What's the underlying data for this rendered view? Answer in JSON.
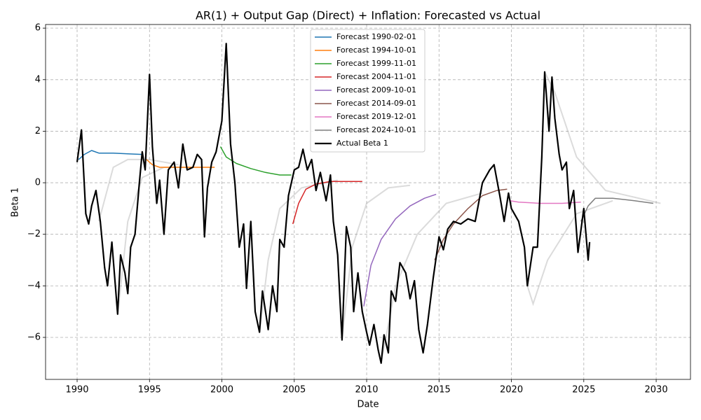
{
  "chart_data": {
    "type": "line",
    "title": "AR(1) + Output Gap (Direct) + Inflation: Forecasted vs Actual",
    "x_label": "Date",
    "y_label": "Beta 1",
    "xlim": [
      1987.82,
      2032.37
    ],
    "ylim": [
      -7.63,
      6.14
    ],
    "xticks": [
      1990,
      1995,
      2000,
      2005,
      2010,
      2015,
      2020,
      2025,
      2030
    ],
    "yticks": [
      {
        "value": -6,
        "label": "−6"
      },
      {
        "value": -4,
        "label": "−4"
      },
      {
        "value": -2,
        "label": "−2"
      },
      0,
      2,
      4,
      6
    ],
    "grid": true,
    "legend": "upper center",
    "background_lines": {
      "color": "#999999",
      "lines": [
        {
          "x": [
            1991.5,
            1992.5,
            1993.5,
            1995.0,
            1997.0
          ],
          "values": [
            -1.5,
            0.6,
            0.9,
            0.9,
            0.7
          ]
        },
        {
          "x": [
            1992.8,
            1993.5,
            1994.5,
            1996.0,
            1998.0
          ],
          "values": [
            -5.1,
            -1.5,
            0.2,
            0.6,
            0.6
          ]
        },
        {
          "x": [
            2002.6,
            2003.2,
            2004.0,
            2005.5,
            2008.0
          ],
          "values": [
            -5.8,
            -3.0,
            -1.0,
            -0.2,
            0.1
          ]
        },
        {
          "x": [
            2008.3,
            2009.0,
            2010.0,
            2011.5,
            2013.0
          ],
          "values": [
            -6.1,
            -2.5,
            -0.8,
            -0.2,
            -0.1
          ]
        },
        {
          "x": [
            2011.0,
            2012.0,
            2013.5,
            2015.5,
            2018.0
          ],
          "values": [
            -7.0,
            -4.0,
            -2.0,
            -0.8,
            -0.4
          ]
        },
        {
          "x": [
            2021.1,
            2021.5,
            2022.5,
            2024.5,
            2027.0
          ],
          "values": [
            -4.0,
            -4.7,
            -3.0,
            -1.2,
            -0.7
          ]
        },
        {
          "x": [
            2022.3,
            2023.0,
            2024.5,
            2026.5,
            2030.3
          ],
          "values": [
            4.3,
            3.5,
            1.0,
            -0.3,
            -0.8
          ]
        }
      ]
    },
    "series": [
      {
        "name": "Forecast 1990-02-01",
        "color": "#1f77b4",
        "width": 1.5,
        "x": [
          1990.1,
          1990.5,
          1991.0,
          1991.5,
          1992.5,
          1993.5,
          1994.5
        ],
        "values": [
          0.9,
          1.1,
          1.25,
          1.15,
          1.15,
          1.12,
          1.1
        ]
      },
      {
        "name": "Forecast 1994-10-01",
        "color": "#ff7f0e",
        "width": 1.5,
        "x": [
          1994.8,
          1995.2,
          1995.7,
          1996.5,
          1997.5,
          1999.5
        ],
        "values": [
          0.9,
          0.7,
          0.6,
          0.6,
          0.6,
          0.6
        ]
      },
      {
        "name": "Forecast 1999-11-01",
        "color": "#2ca02c",
        "width": 1.5,
        "x": [
          1999.9,
          2000.3,
          2001.0,
          2002.0,
          2003.0,
          2004.0,
          2004.8
        ],
        "values": [
          1.4,
          1.0,
          0.75,
          0.55,
          0.4,
          0.3,
          0.3
        ]
      },
      {
        "name": "Forecast 2004-11-01",
        "color": "#d62728",
        "width": 1.5,
        "x": [
          2004.9,
          2005.3,
          2005.8,
          2006.5,
          2007.5,
          2009.7
        ],
        "values": [
          -1.6,
          -0.8,
          -0.25,
          -0.05,
          0.05,
          0.05
        ]
      },
      {
        "name": "Forecast 2009-10-01",
        "color": "#9467bd",
        "width": 1.5,
        "x": [
          2009.8,
          2010.3,
          2011.0,
          2012.0,
          2013.0,
          2014.0,
          2014.8
        ],
        "values": [
          -4.8,
          -3.2,
          -2.2,
          -1.4,
          -0.9,
          -0.6,
          -0.45
        ]
      },
      {
        "name": "Forecast 2014-09-01",
        "color": "#8c564b",
        "width": 1.5,
        "x": [
          2014.7,
          2015.3,
          2016.0,
          2017.0,
          2018.0,
          2019.0,
          2019.7
        ],
        "values": [
          -3.0,
          -2.2,
          -1.6,
          -1.0,
          -0.5,
          -0.3,
          -0.25
        ]
      },
      {
        "name": "Forecast 2019-12-01",
        "color": "#e377c2",
        "width": 1.5,
        "x": [
          2019.9,
          2020.5,
          2022.0,
          2023.5,
          2024.8
        ],
        "values": [
          -0.7,
          -0.75,
          -0.8,
          -0.8,
          -0.75
        ]
      },
      {
        "name": "Forecast 2024-10-01",
        "color": "#7f7f7f",
        "width": 1.5,
        "x": [
          2024.8,
          2025.3,
          2025.8,
          2027.0,
          2028.5,
          2029.8
        ],
        "values": [
          -1.5,
          -0.9,
          -0.6,
          -0.6,
          -0.7,
          -0.8
        ]
      },
      {
        "name": "Actual Beta 1",
        "color": "#000000",
        "width": 2.2,
        "x": [
          1990.0,
          1990.3,
          1990.6,
          1990.8,
          1991.0,
          1991.3,
          1991.6,
          1991.9,
          1992.1,
          1992.4,
          1992.8,
          1993.0,
          1993.3,
          1993.5,
          1993.7,
          1994.0,
          1994.3,
          1994.5,
          1994.7,
          1995.0,
          1995.2,
          1995.5,
          1995.7,
          1996.0,
          1996.3,
          1996.7,
          1997.0,
          1997.3,
          1997.6,
          1998.0,
          1998.3,
          1998.6,
          1998.8,
          1999.0,
          1999.3,
          1999.6,
          2000.0,
          2000.3,
          2000.6,
          2000.9,
          2001.2,
          2001.5,
          2001.7,
          2002.0,
          2002.3,
          2002.6,
          2002.8,
          2003.2,
          2003.5,
          2003.8,
          2004.0,
          2004.3,
          2004.6,
          2005.0,
          2005.3,
          2005.6,
          2005.9,
          2006.2,
          2006.5,
          2006.8,
          2007.2,
          2007.5,
          2007.7,
          2008.0,
          2008.3,
          2008.6,
          2008.9,
          2009.1,
          2009.4,
          2009.7,
          2010.0,
          2010.2,
          2010.5,
          2010.8,
          2011.0,
          2011.2,
          2011.5,
          2011.7,
          2012.0,
          2012.3,
          2012.7,
          2013.0,
          2013.3,
          2013.6,
          2013.9,
          2014.2,
          2014.6,
          2015.0,
          2015.3,
          2015.6,
          2016.0,
          2016.5,
          2017.0,
          2017.5,
          2018.0,
          2018.5,
          2018.8,
          2019.2,
          2019.5,
          2019.8,
          2020.0,
          2020.5,
          2020.9,
          2021.1,
          2021.5,
          2021.8,
          2022.1,
          2022.3,
          2022.6,
          2022.8,
          2023.0,
          2023.3,
          2023.5,
          2023.8,
          2024.0,
          2024.3,
          2024.6,
          2025.0,
          2025.3,
          2025.4
        ],
        "values": [
          0.8,
          2.05,
          -1.2,
          -1.6,
          -0.9,
          -0.3,
          -1.5,
          -3.3,
          -4.0,
          -2.3,
          -5.1,
          -2.8,
          -3.5,
          -4.3,
          -2.5,
          -2.0,
          0.0,
          1.2,
          0.5,
          4.2,
          1.4,
          -0.8,
          0.1,
          -2.0,
          0.5,
          0.8,
          -0.2,
          1.5,
          0.5,
          0.6,
          1.1,
          0.9,
          -2.1,
          -0.2,
          0.8,
          1.2,
          2.4,
          5.4,
          1.5,
          0.0,
          -2.5,
          -1.6,
          -4.1,
          -1.5,
          -5.0,
          -5.8,
          -4.2,
          -5.7,
          -4.0,
          -5.0,
          -2.2,
          -2.5,
          -0.5,
          0.5,
          0.6,
          1.3,
          0.5,
          0.9,
          -0.3,
          0.4,
          -0.7,
          0.3,
          -1.5,
          -2.8,
          -6.1,
          -1.7,
          -2.5,
          -5.0,
          -3.5,
          -5.0,
          -5.8,
          -6.3,
          -5.5,
          -6.5,
          -7.0,
          -5.9,
          -6.6,
          -4.2,
          -4.6,
          -3.1,
          -3.5,
          -4.5,
          -3.8,
          -5.7,
          -6.6,
          -5.5,
          -3.7,
          -2.1,
          -2.6,
          -1.8,
          -1.5,
          -1.6,
          -1.4,
          -1.5,
          0.0,
          0.5,
          0.7,
          -0.5,
          -1.5,
          -0.4,
          -1.0,
          -1.5,
          -2.5,
          -4.0,
          -2.5,
          -2.5,
          1.0,
          4.3,
          2.0,
          4.1,
          2.5,
          1.1,
          0.5,
          0.8,
          -1.0,
          -0.3,
          -2.7,
          -1.0,
          -3.0,
          -2.3
        ]
      }
    ]
  }
}
